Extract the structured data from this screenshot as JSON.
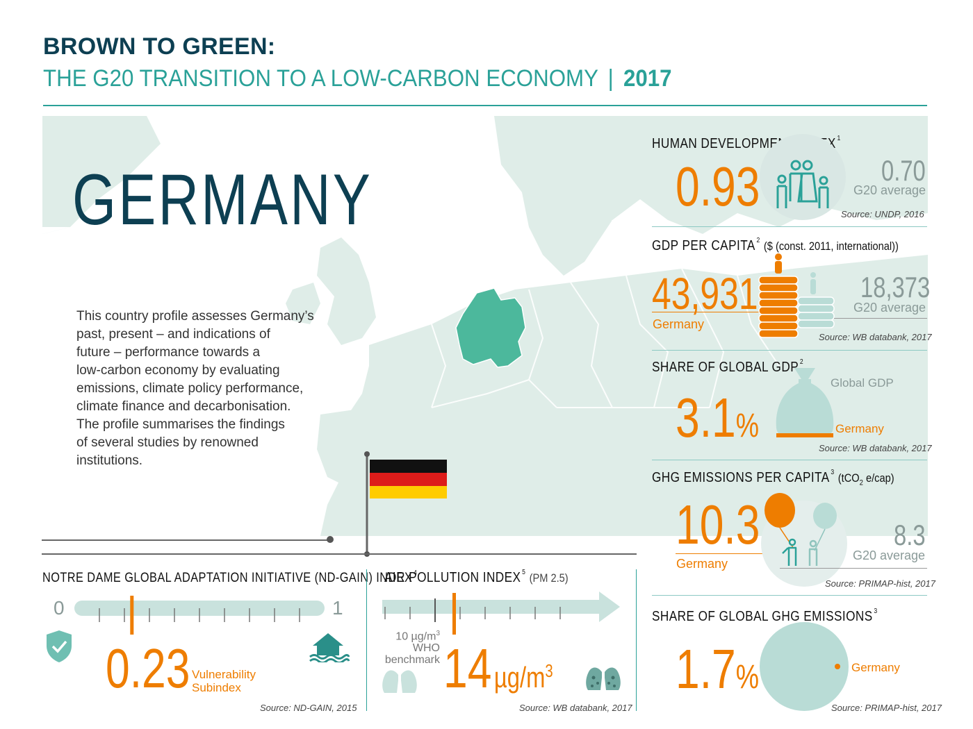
{
  "header": {
    "title": "BROWN TO GREEN:",
    "subtitle": "THE G20 TRANSITION TO A LOW-CARBON ECONOMY",
    "separator": "|",
    "year": "2017"
  },
  "country": {
    "name": "GERMANY",
    "description_lines": [
      "This country profile assesses Germany’s",
      "past, present – and indications of",
      "future – performance towards a",
      "low-carbon economy by evaluating",
      "emissions, climate policy performance,",
      "climate finance and decarbonisation.",
      "The profile summarises the findings",
      "of several studies by renowned",
      "institutions."
    ]
  },
  "colors": {
    "accent_teal": "#2aa198",
    "orange": "#ee7d00",
    "navy": "#0d3f52",
    "map_land": "#dfede8",
    "germany_fill": "#4cb89c",
    "light_teal": "#b9dcd6"
  },
  "hdi": {
    "title": "HUMAN DEVELOPMENT INDEX",
    "footnote": "1",
    "value": "0.93",
    "avg_value": "0.70",
    "avg_label": "G20 average",
    "source": "Source: UNDP, 2016",
    "icon": "family-icon"
  },
  "gdp": {
    "title": "GDP PER CAPITA",
    "footnote": "2",
    "unit": "($ (const. 2011, international))",
    "value": "43,931",
    "country_label": "Germany",
    "avg_value": "18,373",
    "avg_label": "G20 average",
    "source": "Source: WB databank, 2017",
    "icon": "coin-stack-icon"
  },
  "gdp_share": {
    "title": "SHARE OF GLOBAL GDP",
    "footnote": "2",
    "value": "3.1",
    "unit": "%",
    "global_label": "Global GDP",
    "country_label": "Germany",
    "share_percent": 3.1,
    "source": "Source: WB databank, 2017",
    "icon": "money-bag-icon"
  },
  "ghg_capita": {
    "title": "GHG EMISSIONS PER CAPITA",
    "footnote": "3",
    "unit_prefix": "(tCO",
    "unit_sub": "2",
    "unit_suffix": " e/cap)",
    "value": "10.3",
    "country_label": "Germany",
    "avg_value": "8.3",
    "avg_label": "G20 average",
    "source": "Source: PRIMAP-hist, 2017",
    "icon": "balloon-people-icon"
  },
  "ghg_share": {
    "title": "SHARE OF GLOBAL GHG EMISSIONS",
    "footnote": "3",
    "value": "1.7",
    "unit": "%",
    "country_label": "Germany",
    "share_percent": 1.7,
    "source": "Source: PRIMAP-hist, 2017"
  },
  "ndgain": {
    "title": "NOTRE DAME GLOBAL ADAPTATION INITIATIVE (ND-GAIN) INDEX",
    "footnote": "4",
    "scale_min": "0",
    "scale_max": "1",
    "value": "0.23",
    "value_number": 0.23,
    "label_line1": "Vulnerability",
    "label_line2": "Subindex",
    "source": "Source: ND-GAIN, 2015"
  },
  "air": {
    "title": "AIR POLLUTION INDEX",
    "footnote": "5",
    "subtitle": "(PM 2.5)",
    "benchmark_value": "10 µg/m",
    "benchmark_sup": "3",
    "benchmark_line2": "WHO",
    "benchmark_line3": "benchmark",
    "value": "14",
    "unit": "µg/m",
    "unit_sup": "3",
    "source": "Source: WB databank, 2017"
  }
}
